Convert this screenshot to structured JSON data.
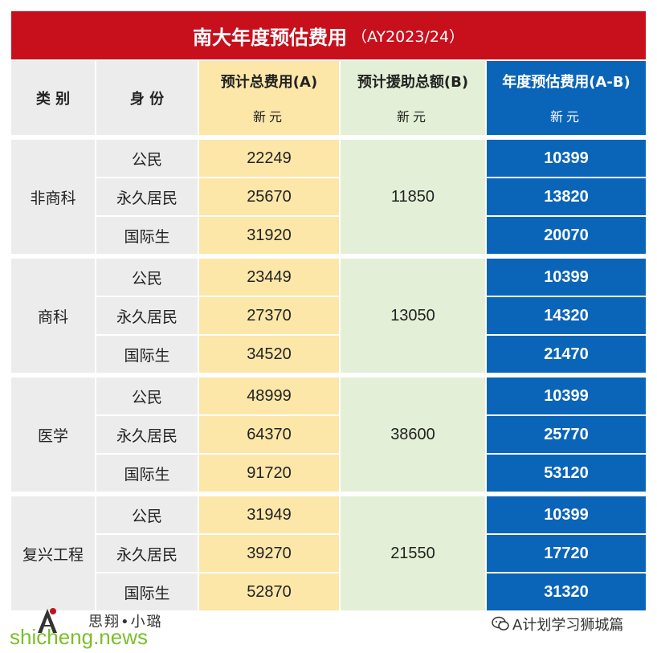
{
  "title": {
    "main": "南大年度预估费用",
    "sub": "（AY2023/24）"
  },
  "headers": {
    "category": "类 别",
    "identity": "身 份",
    "total": "预计总费用(A)",
    "aid": "预计援助总额(B)",
    "annual": "年度预估费用(A-B)",
    "unit": "新元"
  },
  "groups": [
    {
      "category": "非商科",
      "aid": "11850",
      "rows": [
        {
          "identity": "公民",
          "total": "22249",
          "annual": "10399"
        },
        {
          "identity": "永久居民",
          "total": "25670",
          "annual": "13820"
        },
        {
          "identity": "国际生",
          "total": "31920",
          "annual": "20070"
        }
      ]
    },
    {
      "category": "商科",
      "aid": "13050",
      "rows": [
        {
          "identity": "公民",
          "total": "23449",
          "annual": "10399"
        },
        {
          "identity": "永久居民",
          "total": "27370",
          "annual": "14320"
        },
        {
          "identity": "国际生",
          "total": "34520",
          "annual": "21470"
        }
      ]
    },
    {
      "category": "医学",
      "aid": "38600",
      "rows": [
        {
          "identity": "公民",
          "total": "48999",
          "annual": "10399"
        },
        {
          "identity": "永久居民",
          "total": "64370",
          "annual": "25770"
        },
        {
          "identity": "国际生",
          "total": "91720",
          "annual": "53120"
        }
      ]
    },
    {
      "category": "复兴工程",
      "aid": "21550",
      "rows": [
        {
          "identity": "公民",
          "total": "31949",
          "annual": "10399"
        },
        {
          "identity": "永久居民",
          "total": "39270",
          "annual": "17720"
        },
        {
          "identity": "国际生",
          "total": "52870",
          "annual": "31320"
        }
      ]
    }
  ],
  "footer": {
    "brand": "思翔•小璐",
    "watermark": "shicheng.news",
    "wechat": "A计划学习狮城篇",
    "logo_icon": "a-letter-logo-icon",
    "wechat_icon": "wechat-icon"
  },
  "colors": {
    "title_bg": "#c8101d",
    "blue": "#0a64b8",
    "yellow": "#fce7a9",
    "green": "#e3f0d7",
    "gray": "#ececec"
  }
}
